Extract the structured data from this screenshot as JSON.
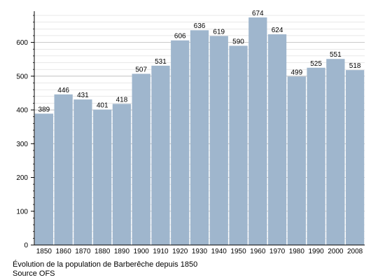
{
  "chart_data": {
    "type": "bar",
    "categories": [
      "1850",
      "1860",
      "1870",
      "1880",
      "1890",
      "1900",
      "1910",
      "1920",
      "1930",
      "1940",
      "1950",
      "1960",
      "1970",
      "1980",
      "1990",
      "2000",
      "2008"
    ],
    "values": [
      389,
      446,
      431,
      401,
      418,
      507,
      531,
      606,
      636,
      619,
      590,
      674,
      624,
      499,
      525,
      551,
      518
    ],
    "ylim": [
      0,
      680
    ],
    "yticks": [
      0,
      100,
      200,
      300,
      400,
      500,
      600
    ],
    "grid": true,
    "bar_color": "#9fb6cd",
    "grid_color": "#d0d0d0"
  },
  "caption": {
    "line1": "Évolution de la population de Barberêche depuis 1850",
    "line2": "Source OFS"
  }
}
